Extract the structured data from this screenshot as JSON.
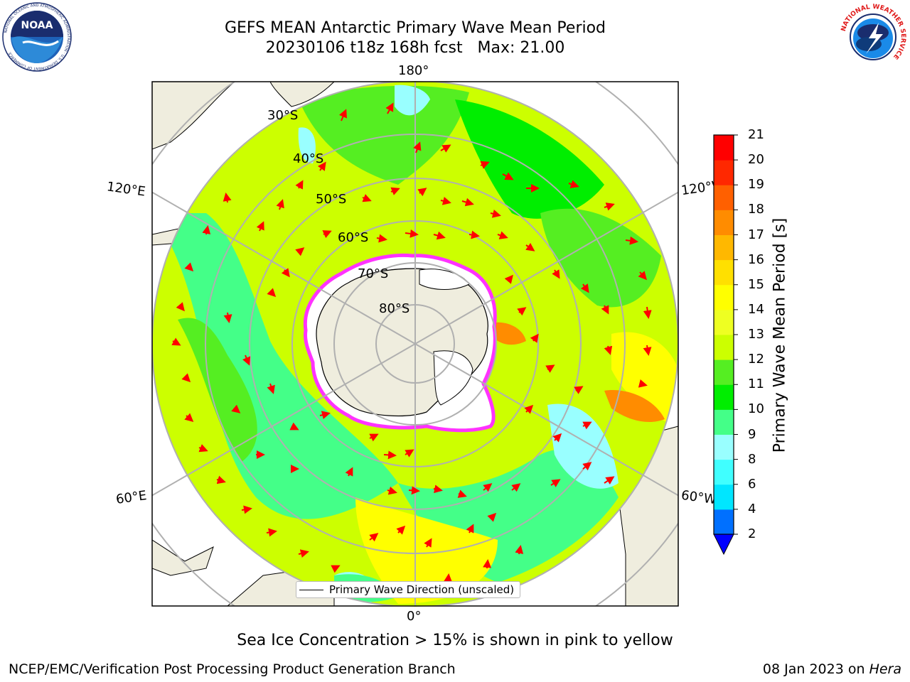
{
  "header": {
    "title_line1": "GEFS MEAN Antarctic Primary Wave Mean Period",
    "title_line2": "20230106 t18z 168h fcst   Max: 21.00"
  },
  "logos": {
    "left": "NOAA",
    "left_ring": "NATIONAL OCEANIC AND ATMOSPHERIC ADMINISTRATION · U.S. DEPARTMENT OF COMMERCE",
    "right_ring": "NATIONAL WEATHER SERVICE"
  },
  "map": {
    "longitude_labels": [
      "180°",
      "120°E",
      "120°W",
      "60°E",
      "60°W",
      "0°"
    ],
    "latitude_labels": [
      "30°S",
      "40°S",
      "50°S",
      "60°S",
      "70°S",
      "80°S"
    ],
    "legend_label": "Primary Wave Direction (unscaled)",
    "colors": {
      "land": "#efedde",
      "arrow": "#ff0000",
      "gridline": "#b0b0b0",
      "sea_ice": "#ff33ff"
    }
  },
  "colorbar": {
    "title": "Primary Wave Mean Period [s]",
    "ticks": [
      "2",
      "4",
      "6",
      "8",
      "9",
      "10",
      "11",
      "12",
      "13",
      "14",
      "15",
      "16",
      "17",
      "18",
      "19",
      "20",
      "21"
    ],
    "bands": [
      {
        "from": "2",
        "to": "4",
        "color": "#0070ff"
      },
      {
        "from": "4",
        "to": "6",
        "color": "#00e6ff"
      },
      {
        "from": "6",
        "to": "8",
        "color": "#40ffff"
      },
      {
        "from": "8",
        "to": "9",
        "color": "#99ffff"
      },
      {
        "from": "9",
        "to": "10",
        "color": "#44ff88"
      },
      {
        "from": "10",
        "to": "11",
        "color": "#00ee00"
      },
      {
        "from": "11",
        "to": "12",
        "color": "#55ee22"
      },
      {
        "from": "12",
        "to": "13",
        "color": "#ccff00"
      },
      {
        "from": "13",
        "to": "14",
        "color": "#eeff22"
      },
      {
        "from": "14",
        "to": "15",
        "color": "#ffff00"
      },
      {
        "from": "15",
        "to": "16",
        "color": "#ffe000"
      },
      {
        "from": "16",
        "to": "17",
        "color": "#ffb800"
      },
      {
        "from": "17",
        "to": "18",
        "color": "#ff8c00"
      },
      {
        "from": "18",
        "to": "19",
        "color": "#ff6000"
      },
      {
        "from": "19",
        "to": "20",
        "color": "#ff2800"
      },
      {
        "from": "20",
        "to": "21",
        "color": "#ff0000"
      }
    ],
    "under_color": "#0000ff"
  },
  "notes": {
    "sea_ice": "Sea Ice Concentration > 15% is shown in pink to yellow"
  },
  "footer": {
    "left": "NCEP/EMC/Verification Post Processing Product Generation Branch",
    "right_date": "08 Jan 2023 on ",
    "right_host": "Hera"
  }
}
